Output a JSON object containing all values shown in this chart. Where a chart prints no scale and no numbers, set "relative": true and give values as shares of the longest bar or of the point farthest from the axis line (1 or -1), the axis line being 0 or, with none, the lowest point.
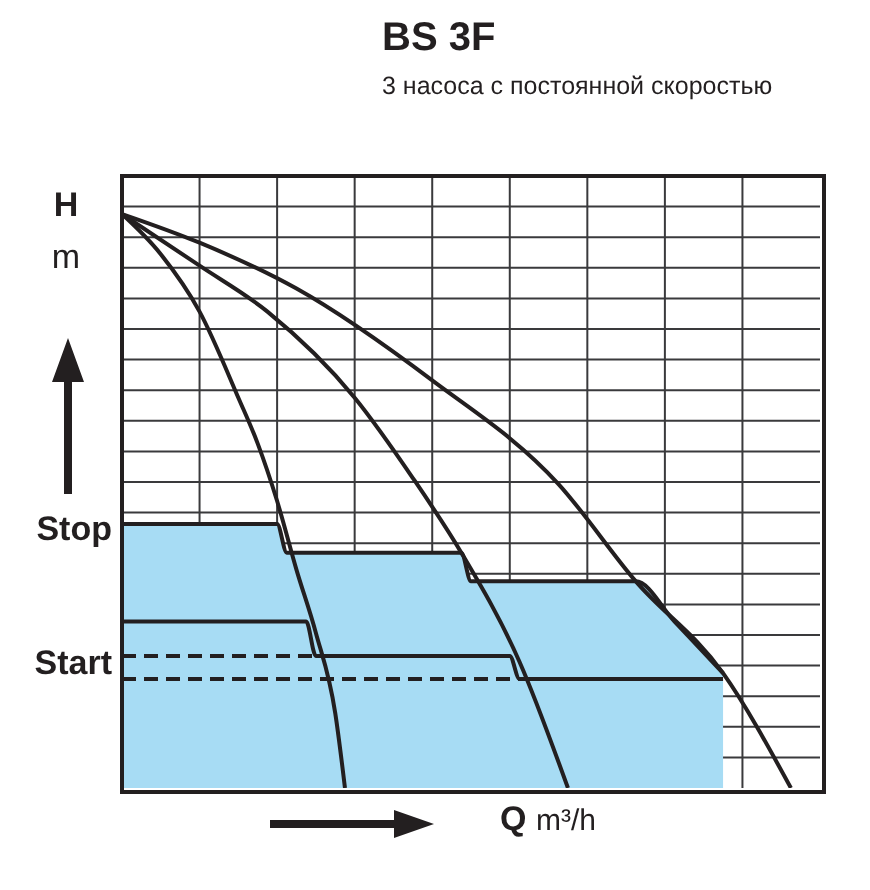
{
  "chart_data": {
    "type": "line",
    "title": "BS 3F",
    "subtitle": "3 насоса с постоянной скоростью",
    "xlabel": "Q m³/h",
    "ylabel": "H m",
    "relative": true,
    "grid": true,
    "legend": false,
    "marker": "none",
    "categories": [
      null,
      null,
      null,
      null,
      null,
      null,
      null,
      null,
      null,
      null,
      null,
      null,
      null,
      null,
      null,
      null,
      null,
      null,
      null,
      null,
      null,
      null,
      null,
      null,
      null,
      null,
      null,
      null,
      null,
      null,
      null,
      null,
      null,
      null,
      null,
      null,
      null,
      null,
      null,
      null,
      null,
      null,
      null,
      null,
      null,
      null,
      null,
      null,
      null,
      null,
      null,
      null,
      null,
      null,
      null,
      null,
      null,
      null,
      null,
      null,
      null,
      null,
      null,
      null,
      null,
      null,
      null,
      null,
      null,
      null,
      null,
      null,
      null
    ],
    "annotations": [
      "Stop",
      "Start"
    ],
    "series": [
      {
        "color": "#231f20",
        "values": [
          1,
          null,
          null,
          null,
          0.93,
          null,
          null,
          null,
          0.83,
          null,
          null,
          null,
          0.68,
          null,
          0.6,
          null,
          0.5,
          null,
          0.38,
          null,
          0.27,
          null,
          0.13,
          0,
          null,
          null,
          null,
          null,
          null,
          null,
          null,
          null,
          null,
          null,
          null,
          null,
          null,
          null,
          null,
          null,
          null,
          null,
          null,
          null,
          null,
          null,
          null,
          null,
          null,
          null,
          null,
          null,
          null,
          null,
          null,
          null,
          null,
          null,
          null,
          null,
          null,
          null,
          null,
          null,
          null,
          null,
          null,
          null,
          null,
          null,
          null,
          null,
          null
        ]
      },
      {
        "color": "#231f20",
        "values": [
          1,
          null,
          null,
          null,
          null,
          null,
          null,
          null,
          0.91,
          null,
          null,
          null,
          null,
          null,
          null,
          0.83,
          null,
          null,
          null,
          null,
          null,
          null,
          null,
          null,
          0.68,
          null,
          null,
          null,
          null,
          null,
          0.54,
          null,
          null,
          null,
          null,
          0.41,
          null,
          null,
          null,
          null,
          null,
          0.22,
          null,
          null,
          null,
          null,
          0,
          null,
          null,
          null,
          null,
          null,
          null,
          null,
          null,
          null,
          null,
          null,
          null,
          null,
          null,
          null,
          null,
          null,
          null,
          null,
          null,
          null,
          null,
          null,
          null,
          null,
          null
        ]
      },
      {
        "color": "#231f20",
        "values": [
          1,
          null,
          null,
          null,
          null,
          null,
          null,
          null,
          0.95,
          null,
          null,
          null,
          null,
          null,
          null,
          null,
          null,
          null,
          0.87,
          null,
          null,
          null,
          null,
          null,
          null,
          null,
          null,
          null,
          null,
          null,
          null,
          null,
          0.71,
          null,
          null,
          null,
          null,
          null,
          null,
          null,
          null,
          null,
          null,
          null,
          null,
          0.53,
          null,
          null,
          null,
          null,
          null,
          null,
          null,
          0.36,
          null,
          null,
          null,
          null,
          null,
          null,
          null,
          null,
          0.2,
          null,
          null,
          null,
          null,
          null,
          null,
          0,
          null,
          null,
          null
        ]
      },
      {
        "color": "#231f20",
        "values": [
          0.29,
          null,
          null,
          null,
          null,
          null,
          null,
          null,
          null,
          null,
          null,
          null,
          null,
          null,
          null,
          null,
          null,
          null,
          null,
          0.29,
          0.23,
          null,
          null,
          null,
          null,
          null,
          null,
          null,
          null,
          null,
          null,
          null,
          null,
          null,
          null,
          null,
          null,
          null,
          null,
          null,
          0.23,
          0.19,
          null,
          null,
          null,
          null,
          null,
          null,
          null,
          null,
          null,
          null,
          null,
          null,
          null,
          null,
          null,
          null,
          null,
          null,
          null,
          null,
          0.19,
          null,
          null,
          null,
          null,
          null,
          null,
          null,
          null,
          null,
          null
        ]
      },
      {
        "color": "#231f20",
        "line_style": "dashed",
        "values": [
          0.23,
          null,
          null,
          null,
          null,
          null,
          null,
          null,
          null,
          null,
          null,
          null,
          null,
          null,
          null,
          null,
          null,
          null,
          null,
          null,
          0.23,
          null,
          null,
          null,
          null,
          null,
          null,
          null,
          null,
          null,
          null,
          null,
          null,
          null,
          null,
          null,
          null,
          null,
          null,
          null,
          null,
          null,
          null,
          null,
          null,
          null,
          null,
          null,
          null,
          null,
          null,
          null,
          null,
          null,
          null,
          null,
          null,
          null,
          null,
          null,
          null,
          null,
          null,
          null,
          null,
          null,
          null,
          null,
          null,
          null,
          null,
          null,
          null
        ]
      },
      {
        "color": "#231f20",
        "line_style": "dashed",
        "values": [
          0.19,
          null,
          null,
          null,
          null,
          null,
          null,
          null,
          null,
          null,
          null,
          null,
          null,
          null,
          null,
          null,
          null,
          null,
          null,
          null,
          null,
          null,
          null,
          null,
          null,
          null,
          null,
          null,
          null,
          null,
          null,
          null,
          null,
          null,
          null,
          null,
          null,
          null,
          null,
          null,
          null,
          0.19,
          null,
          null,
          null,
          null,
          null,
          null,
          null,
          null,
          null,
          null,
          null,
          null,
          null,
          null,
          null,
          null,
          null,
          null,
          null,
          null,
          null,
          null,
          null,
          null,
          null,
          null,
          null,
          null,
          null,
          null,
          null
        ]
      },
      {
        "type": "area",
        "color": "#a7dcf4",
        "values": [
          0.46,
          null,
          null,
          null,
          null,
          null,
          null,
          null,
          null,
          null,
          null,
          null,
          null,
          null,
          null,
          null,
          0.46,
          0.41,
          null,
          null,
          null,
          null,
          null,
          null,
          null,
          null,
          null,
          null,
          null,
          null,
          null,
          null,
          null,
          null,
          null,
          0.41,
          0.36,
          null,
          null,
          null,
          null,
          null,
          null,
          null,
          null,
          null,
          null,
          null,
          null,
          null,
          null,
          null,
          null,
          0.36,
          null,
          null,
          null,
          0.29,
          null,
          null,
          null,
          null,
          0.2,
          null,
          null,
          null,
          null,
          null,
          null,
          null,
          null,
          null,
          null
        ]
      }
    ]
  }
}
